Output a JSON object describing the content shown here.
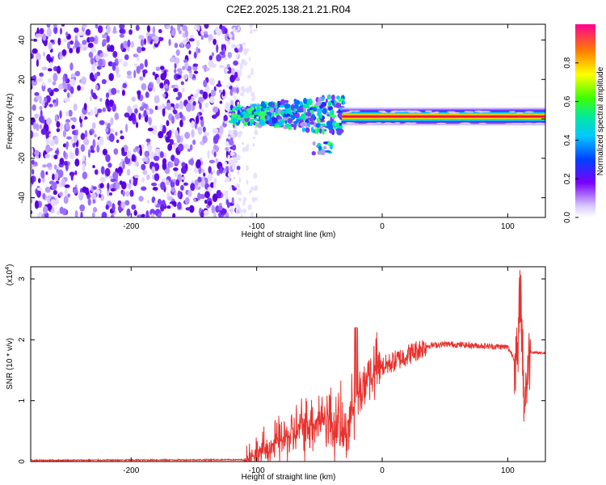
{
  "title": "C2E2.2025.138.21.21.R04",
  "chart_data": [
    {
      "type": "heatmap",
      "xlabel": "Height of straight line (km)",
      "ylabel": "Frequency (Hz)",
      "xlim": [
        -280,
        130
      ],
      "ylim": [
        -50,
        48
      ],
      "xticks": [
        -200,
        -100,
        0,
        100
      ],
      "yticks": [
        -40,
        -20,
        0,
        20,
        40
      ],
      "colorbar": {
        "label": "Normalized spectral amplitude",
        "range": [
          0,
          1
        ],
        "ticks": [
          0.0,
          0.2,
          0.4,
          0.6,
          0.8
        ]
      },
      "regions": [
        {
          "x": [
            -280,
            -118
          ],
          "freq": [
            -50,
            48
          ],
          "level": "low (noise)"
        },
        {
          "x": [
            -120,
            -30
          ],
          "freq": [
            -15,
            20
          ],
          "level": "mixed"
        },
        {
          "x": [
            -30,
            130
          ],
          "freq": [
            0,
            3
          ],
          "level": "high (carrier)"
        }
      ]
    },
    {
      "type": "line",
      "xlabel": "Height of straight line (km)",
      "ylabel": "SNR (10 * v/v)",
      "yscale_label": "(x10",
      "yscale_exp": "4",
      "xlim": [
        -280,
        130
      ],
      "ylim": [
        0,
        3.2
      ],
      "xticks": [
        -200,
        -100,
        0,
        100
      ],
      "yticks": [
        0,
        1,
        2,
        3
      ],
      "series": [
        {
          "color": "#e8322e",
          "x": [
            -280,
            -110,
            -100,
            -80,
            -60,
            -45,
            -30,
            -20,
            -10,
            0,
            20,
            35,
            50,
            80,
            100,
            108,
            110,
            113,
            118,
            130
          ],
          "y": [
            0.02,
            0.03,
            0.12,
            0.35,
            0.6,
            0.75,
            0.45,
            1.1,
            1.45,
            1.55,
            1.75,
            1.9,
            1.93,
            1.9,
            1.88,
            1.6,
            3.0,
            1.0,
            1.8,
            1.78
          ]
        }
      ]
    }
  ]
}
